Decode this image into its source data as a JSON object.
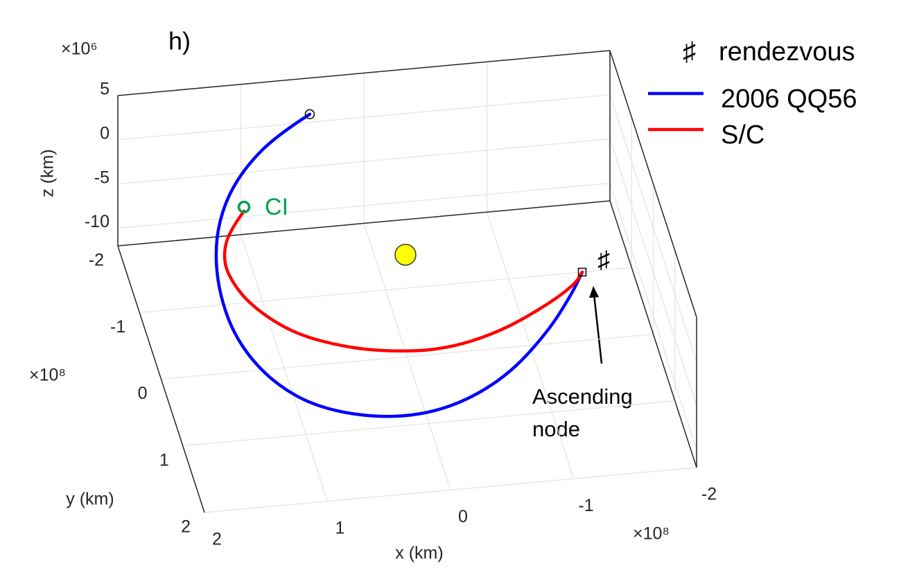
{
  "chart_data": {
    "type": "line3d",
    "title": "h)",
    "xlabel": "x (km)",
    "ylabel": "y (km)",
    "zlabel": "z (km)",
    "x_exponent": "×10⁸",
    "y_exponent": "×10⁸",
    "z_exponent": "×10⁶",
    "xlim": [
      -2,
      2
    ],
    "ylim": [
      -2,
      2
    ],
    "zlim": [
      -12,
      5
    ],
    "xticks": [
      -2,
      -1,
      0,
      1,
      2
    ],
    "yticks": [
      -2,
      -1,
      0,
      1,
      2
    ],
    "zticks": [
      -10,
      -5,
      0,
      5
    ],
    "grid": true,
    "series": [
      {
        "name": "2006 QQ56",
        "color": "#0000ff",
        "x": [
          0.515,
          0.813,
          1.127,
          1.355,
          1.519,
          1.592,
          1.555,
          1.363,
          1.039,
          0.506,
          0,
          -0.506,
          -0.925,
          -1.19,
          -1.304
        ],
        "y": [
          -1.573,
          -1.383,
          -1.04,
          -0.703,
          -0.25,
          0.321,
          0.912,
          1.424,
          1.823,
          1.997,
          1.998,
          1.688,
          1.226,
          0.839,
          0.673
        ],
        "z": [
          4.22,
          3.68,
          3.14,
          2.06,
          0.98,
          -0.1,
          -1.18,
          -2.27,
          -2.81,
          -3.35,
          -2.81,
          -2.27,
          -1.18,
          -0.1,
          0.98
        ]
      },
      {
        "name": "S/C",
        "color": "#ff0000",
        "x": [
          1.234,
          1.396,
          1.489,
          1.486,
          1.381,
          1.112,
          0.752,
          0.383,
          -0.06,
          -0.53,
          -0.972,
          -1.231,
          -1.304
        ],
        "y": [
          -0.526,
          -0.314,
          -0.037,
          0.203,
          0.565,
          0.954,
          1.151,
          1.296,
          1.34,
          1.231,
          0.962,
          0.766,
          0.673
        ],
        "z": [
          2.06,
          1.52,
          0.98,
          0.44,
          -0.1,
          -0.64,
          -1.18,
          -1.18,
          -1.18,
          -0.64,
          -0.1,
          0.44,
          0.98
        ]
      }
    ],
    "sun": {
      "x": 0.047,
      "y": 0.185,
      "z": 0.98,
      "color": "#ffff00"
    },
    "legend_symbol": {
      "symbol": "♯",
      "text": "rendezvous"
    },
    "annotations": {
      "ci": "CI",
      "ci_color": "#00a050",
      "rendezvous": "♯",
      "node": [
        "Ascending",
        "node"
      ]
    }
  }
}
